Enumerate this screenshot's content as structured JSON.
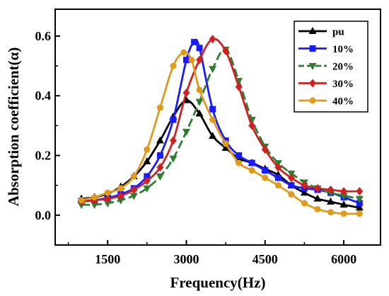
{
  "chart_data": {
    "type": "line",
    "xlabel": "Frequency(Hz)",
    "ylabel": "Absorption coefficient(α)",
    "xlim": [
      500,
      6700
    ],
    "ylim": [
      -0.1,
      0.69
    ],
    "xticks": [
      1500,
      3000,
      4500,
      6000
    ],
    "xtick_labels": [
      "1500",
      "3000",
      "4500",
      "6000"
    ],
    "yticks": [
      0.0,
      0.2,
      0.4,
      0.6
    ],
    "ytick_labels": [
      "0.0",
      "0.2",
      "0.4",
      "0.6"
    ],
    "grid": false,
    "legend_position": "top-right",
    "series": [
      {
        "name": "pu",
        "color": "#000000",
        "marker": "triangle",
        "dash": "solid",
        "x": [
          1000,
          1250,
          1500,
          1750,
          2000,
          2250,
          2500,
          2750,
          3000,
          3250,
          3500,
          3750,
          4000,
          4250,
          4500,
          4750,
          5000,
          5250,
          5500,
          5750,
          6000,
          6300
        ],
        "y": [
          0.055,
          0.06,
          0.072,
          0.095,
          0.13,
          0.18,
          0.25,
          0.33,
          0.385,
          0.34,
          0.265,
          0.225,
          0.19,
          0.175,
          0.155,
          0.135,
          0.1,
          0.075,
          0.055,
          0.045,
          0.035,
          0.025
        ]
      },
      {
        "name": "10%",
        "color": "#1a1aff",
        "marker": "square",
        "dash": "solid",
        "x": [
          1000,
          1250,
          1500,
          1750,
          2000,
          2250,
          2500,
          2750,
          3000,
          3150,
          3250,
          3500,
          3750,
          4000,
          4250,
          4500,
          4750,
          5000,
          5250,
          5500,
          5750,
          6000,
          6300
        ],
        "y": [
          0.048,
          0.05,
          0.058,
          0.07,
          0.09,
          0.13,
          0.2,
          0.32,
          0.52,
          0.58,
          0.56,
          0.355,
          0.25,
          0.2,
          0.175,
          0.15,
          0.125,
          0.1,
          0.09,
          0.085,
          0.075,
          0.06,
          0.04
        ]
      },
      {
        "name": "20%",
        "color": "#2e7d32",
        "marker": "triangle-down",
        "dash": "dashed",
        "x": [
          1000,
          1250,
          1500,
          1750,
          2000,
          2250,
          2500,
          2750,
          3000,
          3250,
          3500,
          3750,
          4000,
          4250,
          4500,
          4750,
          5000,
          5250,
          5500,
          5750,
          6000,
          6300
        ],
        "y": [
          0.035,
          0.035,
          0.04,
          0.05,
          0.065,
          0.09,
          0.13,
          0.19,
          0.28,
          0.38,
          0.49,
          0.555,
          0.45,
          0.32,
          0.23,
          0.175,
          0.14,
          0.11,
          0.09,
          0.075,
          0.065,
          0.055
        ]
      },
      {
        "name": "30%",
        "color": "#cc2222",
        "marker": "diamond",
        "dash": "solid",
        "x": [
          1000,
          1250,
          1500,
          1750,
          2000,
          2250,
          2500,
          2750,
          3000,
          3250,
          3500,
          3750,
          4000,
          4250,
          4500,
          4750,
          5000,
          5250,
          5500,
          5750,
          6000,
          6300
        ],
        "y": [
          0.045,
          0.05,
          0.055,
          0.065,
          0.085,
          0.115,
          0.16,
          0.25,
          0.41,
          0.52,
          0.59,
          0.55,
          0.43,
          0.3,
          0.22,
          0.16,
          0.125,
          0.1,
          0.09,
          0.085,
          0.08,
          0.08
        ]
      },
      {
        "name": "40%",
        "color": "#e09a1e",
        "marker": "circle",
        "dash": "solid",
        "x": [
          1000,
          1250,
          1500,
          1750,
          2000,
          2250,
          2500,
          2750,
          2950,
          3100,
          3250,
          3500,
          3750,
          4000,
          4250,
          4500,
          4750,
          5000,
          5250,
          5500,
          5750,
          6000,
          6300
        ],
        "y": [
          0.05,
          0.06,
          0.075,
          0.09,
          0.13,
          0.22,
          0.36,
          0.5,
          0.545,
          0.52,
          0.42,
          0.32,
          0.24,
          0.175,
          0.15,
          0.125,
          0.1,
          0.07,
          0.04,
          0.02,
          0.01,
          0.005,
          0.005
        ]
      }
    ]
  }
}
